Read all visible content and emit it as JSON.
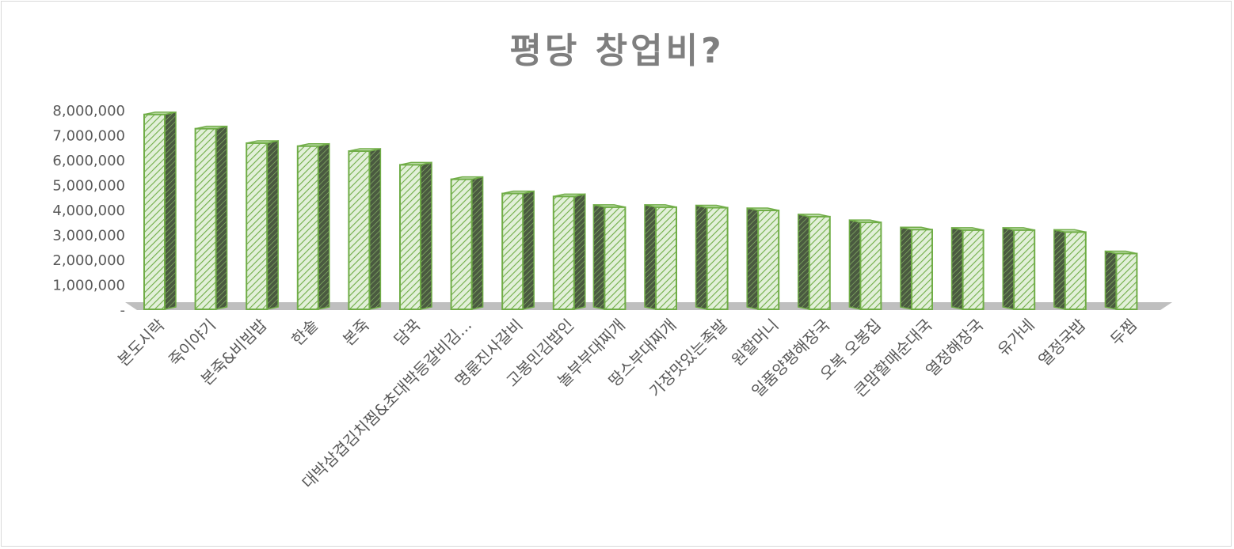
{
  "chart_data": {
    "type": "bar",
    "style": "3d-column",
    "title": "평당 창업비?",
    "xlabel": "",
    "ylabel": "",
    "ylim": [
      0,
      8000000
    ],
    "yticks": [
      0,
      1000000,
      2000000,
      3000000,
      4000000,
      5000000,
      6000000,
      7000000,
      8000000
    ],
    "ytick_labels": [
      "-",
      "1,000,000",
      "2,000,000",
      "3,000,000",
      "4,000,000",
      "5,000,000",
      "6,000,000",
      "7,000,000",
      "8,000,000"
    ],
    "grid": false,
    "legend": "none",
    "categories": [
      "본도시락",
      "죽이야기",
      "본죽&비빔밥",
      "한솥",
      "본죽",
      "담꾹",
      "대박삼겹김치찜&초대박등갈비김...",
      "명륜진사갈비",
      "고봉민김밥인",
      "놀부부대찌개",
      "땅스부대찌개",
      "가장맛있는족발",
      "원할머니",
      "일품양평해장국",
      "오복 오봉집",
      "큰맘할매순대국",
      "열정해장국",
      "유가네",
      "열정국밥",
      "두찜"
    ],
    "values": [
      7850000,
      7280000,
      6700000,
      6580000,
      6380000,
      5830000,
      5250000,
      4680000,
      4560000,
      4130000,
      4130000,
      4110000,
      4000000,
      3750000,
      3520000,
      3230000,
      3210000,
      3210000,
      3130000,
      2270000
    ],
    "colors": {
      "bar_fill": "#e2f0d9",
      "bar_stroke": "#70ad47",
      "hatch": "#70ad47",
      "side_dark": "#4a5a40",
      "floor": "#bfbfbf",
      "title": "#7f7f7f",
      "text": "#595959"
    }
  }
}
